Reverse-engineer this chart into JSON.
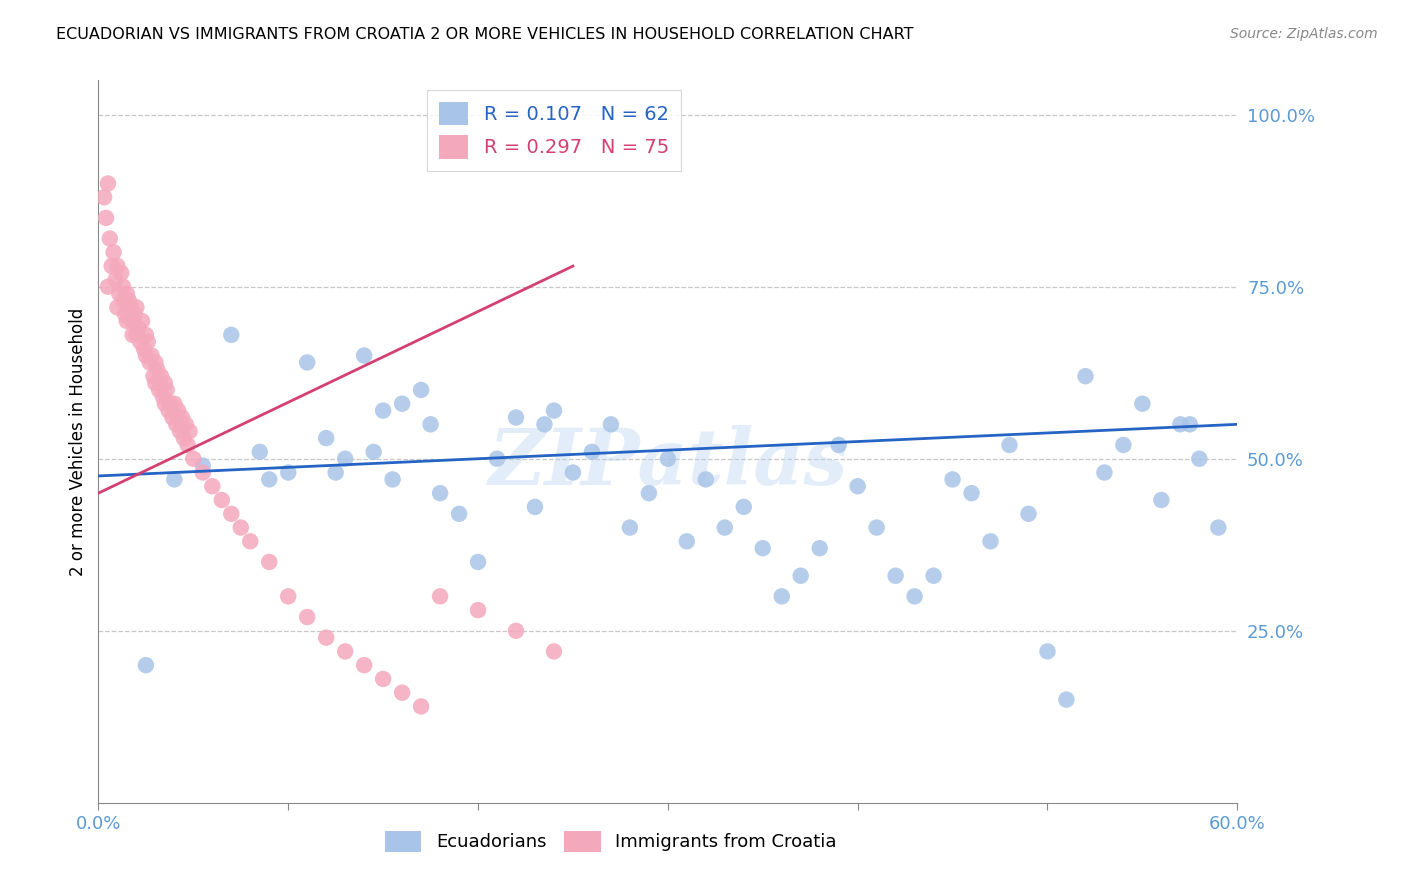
{
  "title": "ECUADORIAN VS IMMIGRANTS FROM CROATIA 2 OR MORE VEHICLES IN HOUSEHOLD CORRELATION CHART",
  "source": "Source: ZipAtlas.com",
  "ylabel": "2 or more Vehicles in Household",
  "xmin": 0.0,
  "xmax": 60.0,
  "ymin": 0.0,
  "ymax": 105.0,
  "blue_R": 0.107,
  "blue_N": 62,
  "pink_R": 0.297,
  "pink_N": 75,
  "blue_color": "#a8c4e8",
  "pink_color": "#f4a8bc",
  "blue_line_color": "#2563c4",
  "pink_line_color": "#d44070",
  "legend_label_blue": "Ecuadorians",
  "legend_label_pink": "Immigrants from Croatia",
  "watermark": "ZIPatlas",
  "title_fontsize": 11.5,
  "axis_label_color": "#5b9bd5",
  "grid_color": "#c8c8c8",
  "blue_scatter_x": [
    2.5,
    4.0,
    5.5,
    7.0,
    8.5,
    9.0,
    10.0,
    11.0,
    12.0,
    12.5,
    13.0,
    14.0,
    14.5,
    15.0,
    15.5,
    16.0,
    17.0,
    17.5,
    18.0,
    19.0,
    20.0,
    21.0,
    22.0,
    23.0,
    23.5,
    24.0,
    25.0,
    26.0,
    27.0,
    28.0,
    29.0,
    30.0,
    31.0,
    32.0,
    33.0,
    34.0,
    35.0,
    36.0,
    37.0,
    38.0,
    39.0,
    40.0,
    41.0,
    42.0,
    43.0,
    44.0,
    45.0,
    46.0,
    47.0,
    48.0,
    49.0,
    50.0,
    51.0,
    52.0,
    53.0,
    54.0,
    55.0,
    56.0,
    57.0,
    58.0,
    59.0,
    57.5
  ],
  "blue_scatter_y": [
    20.0,
    47.0,
    49.0,
    68.0,
    51.0,
    47.0,
    48.0,
    64.0,
    53.0,
    48.0,
    50.0,
    65.0,
    51.0,
    57.0,
    47.0,
    58.0,
    60.0,
    55.0,
    45.0,
    42.0,
    35.0,
    50.0,
    56.0,
    43.0,
    55.0,
    57.0,
    48.0,
    51.0,
    55.0,
    40.0,
    45.0,
    50.0,
    38.0,
    47.0,
    40.0,
    43.0,
    37.0,
    30.0,
    33.0,
    37.0,
    52.0,
    46.0,
    40.0,
    33.0,
    30.0,
    33.0,
    47.0,
    45.0,
    38.0,
    52.0,
    42.0,
    22.0,
    15.0,
    62.0,
    48.0,
    52.0,
    58.0,
    44.0,
    55.0,
    50.0,
    40.0,
    55.0
  ],
  "pink_scatter_x": [
    0.3,
    0.4,
    0.5,
    0.5,
    0.6,
    0.7,
    0.8,
    0.9,
    1.0,
    1.0,
    1.1,
    1.2,
    1.3,
    1.3,
    1.4,
    1.5,
    1.5,
    1.6,
    1.7,
    1.8,
    1.8,
    1.9,
    2.0,
    2.0,
    2.1,
    2.2,
    2.3,
    2.4,
    2.5,
    2.5,
    2.6,
    2.7,
    2.8,
    2.9,
    3.0,
    3.0,
    3.1,
    3.2,
    3.3,
    3.4,
    3.5,
    3.5,
    3.6,
    3.7,
    3.8,
    3.9,
    4.0,
    4.1,
    4.2,
    4.3,
    4.4,
    4.5,
    4.6,
    4.7,
    4.8,
    5.0,
    5.5,
    6.0,
    6.5,
    7.0,
    7.5,
    8.0,
    9.0,
    10.0,
    11.0,
    12.0,
    13.0,
    14.0,
    15.0,
    16.0,
    17.0,
    18.0,
    20.0,
    22.0,
    24.0
  ],
  "pink_scatter_y": [
    88.0,
    85.0,
    90.0,
    75.0,
    82.0,
    78.0,
    80.0,
    76.0,
    72.0,
    78.0,
    74.0,
    77.0,
    73.0,
    75.0,
    71.0,
    74.0,
    70.0,
    73.0,
    72.0,
    70.0,
    68.0,
    71.0,
    68.0,
    72.0,
    69.0,
    67.0,
    70.0,
    66.0,
    68.0,
    65.0,
    67.0,
    64.0,
    65.0,
    62.0,
    64.0,
    61.0,
    63.0,
    60.0,
    62.0,
    59.0,
    61.0,
    58.0,
    60.0,
    57.0,
    58.0,
    56.0,
    58.0,
    55.0,
    57.0,
    54.0,
    56.0,
    53.0,
    55.0,
    52.0,
    54.0,
    50.0,
    48.0,
    46.0,
    44.0,
    42.0,
    40.0,
    38.0,
    35.0,
    30.0,
    27.0,
    24.0,
    22.0,
    20.0,
    18.0,
    16.0,
    14.0,
    30.0,
    28.0,
    25.0,
    22.0
  ],
  "pink_line_x0": 0.0,
  "pink_line_y0": 45.0,
  "pink_line_x1": 25.0,
  "pink_line_y1": 78.0,
  "blue_line_x0": 0.0,
  "blue_line_y0": 47.5,
  "blue_line_x1": 60.0,
  "blue_line_y1": 55.0
}
